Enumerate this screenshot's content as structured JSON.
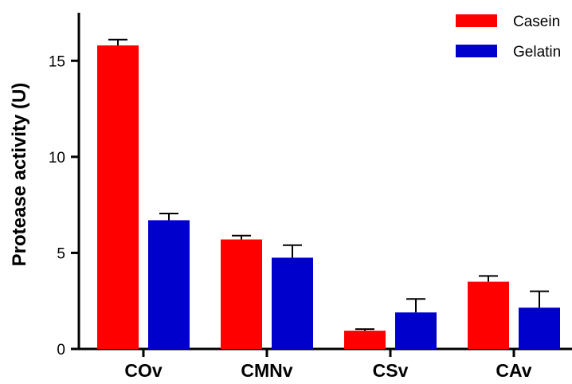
{
  "chart_data": {
    "type": "bar",
    "title": "",
    "xlabel": "",
    "ylabel": "Protease activity (U)",
    "ylim": [
      0,
      17.5
    ],
    "yticks": [
      "0",
      "5",
      "10",
      "15"
    ],
    "categories": [
      "COv",
      "CMNv",
      "CSv",
      "CAv"
    ],
    "series": [
      {
        "name": "Casein",
        "color": "#ff0000",
        "values": [
          15.8,
          5.7,
          0.95,
          3.5
        ],
        "errors": [
          0.3,
          0.2,
          0.08,
          0.3
        ]
      },
      {
        "name": "Gelatin",
        "color": "#0000cc",
        "values": [
          6.7,
          4.75,
          1.9,
          2.15
        ],
        "errors": [
          0.35,
          0.65,
          0.7,
          0.85
        ]
      }
    ],
    "legend": "top-right",
    "grid": false,
    "error_bars": "upper"
  }
}
